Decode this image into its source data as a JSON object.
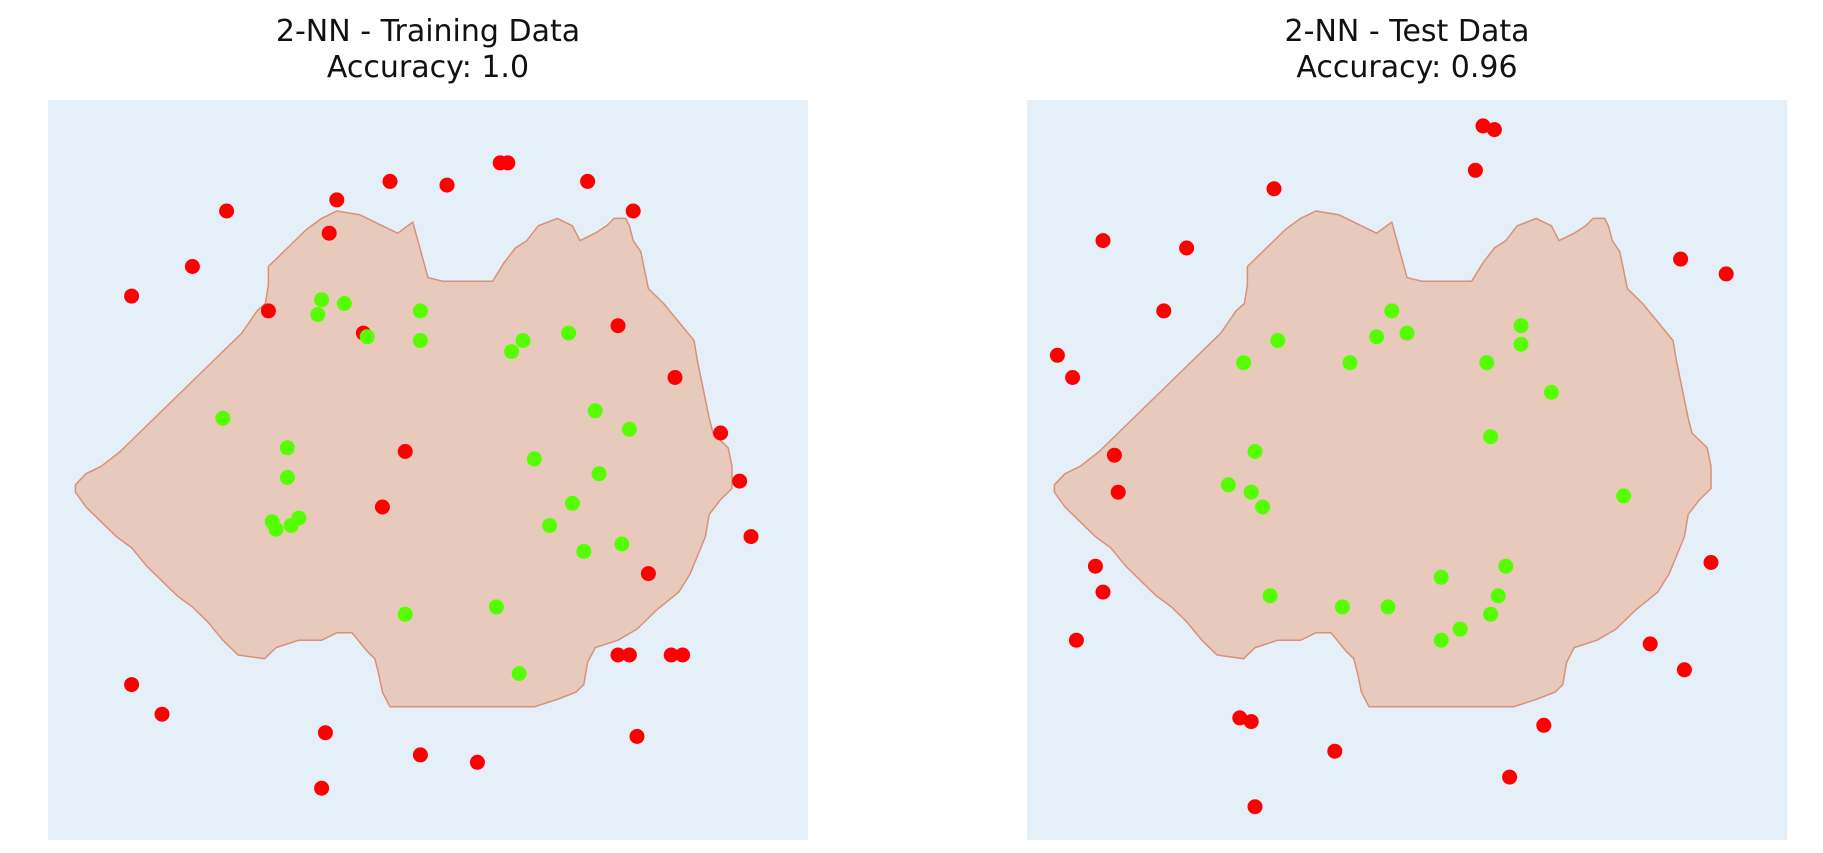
{
  "chart_data": [
    {
      "type": "scatter",
      "title": "2-NN - Training Data",
      "subtitle": "Accuracy: 1.0",
      "xlabel": "",
      "ylabel": "",
      "xlim": [
        0,
        100
      ],
      "ylim": [
        0,
        100
      ],
      "axes_visible": false,
      "grid": false,
      "colors": {
        "background": "#e4eff7",
        "region": "#e8cabd",
        "region_edge": "#d99078",
        "class_in": "#55ff00",
        "class_out": "#ff0000"
      },
      "region_boundary": [
        [
          3.6,
          48
        ],
        [
          5.0,
          49.5
        ],
        [
          7.0,
          50.5
        ],
        [
          9.5,
          52.5
        ],
        [
          12.0,
          55.0
        ],
        [
          15.0,
          58.0
        ],
        [
          18.0,
          61.0
        ],
        [
          21.0,
          64.0
        ],
        [
          24.0,
          67.0
        ],
        [
          25.5,
          68.5
        ],
        [
          26.5,
          70.0
        ],
        [
          27.5,
          71.5
        ],
        [
          28.6,
          72.5
        ],
        [
          29.0,
          75.0
        ],
        [
          29.0,
          77.5
        ],
        [
          31.5,
          80.0
        ],
        [
          34.0,
          82.5
        ],
        [
          36.0,
          84.0
        ],
        [
          38.0,
          85.0
        ],
        [
          41.0,
          84.5
        ],
        [
          44.0,
          83.0
        ],
        [
          46.0,
          82.0
        ],
        [
          48.0,
          83.5
        ],
        [
          50.0,
          76.0
        ],
        [
          52.0,
          75.5
        ],
        [
          56.0,
          75.5
        ],
        [
          58.5,
          75.5
        ],
        [
          60.0,
          78.0
        ],
        [
          61.5,
          80.0
        ],
        [
          63.0,
          81.0
        ],
        [
          64.5,
          83.0
        ],
        [
          67.0,
          84.0
        ],
        [
          69.0,
          83.0
        ],
        [
          70.0,
          81.0
        ],
        [
          72.0,
          82.0
        ],
        [
          73.5,
          83.0
        ],
        [
          74.5,
          84.0
        ],
        [
          76.0,
          84.0
        ],
        [
          76.5,
          83.0
        ],
        [
          77.0,
          81.0
        ],
        [
          78.0,
          79.5
        ],
        [
          78.5,
          77.0
        ],
        [
          79.0,
          74.5
        ],
        [
          81.0,
          72.5
        ],
        [
          83.0,
          70.0
        ],
        [
          85.0,
          67.5
        ],
        [
          85.5,
          64.5
        ],
        [
          86.0,
          62.0
        ],
        [
          86.5,
          59.5
        ],
        [
          87.0,
          57.0
        ],
        [
          87.5,
          55.0
        ],
        [
          89.5,
          53.0
        ],
        [
          90.0,
          50.5
        ],
        [
          90.0,
          47.5
        ],
        [
          88.5,
          46.0
        ],
        [
          87.0,
          44.0
        ],
        [
          86.5,
          41.0
        ],
        [
          85.5,
          38.5
        ],
        [
          84.5,
          36.0
        ],
        [
          83.0,
          33.5
        ],
        [
          80.0,
          31.0
        ],
        [
          77.5,
          28.5
        ],
        [
          75.0,
          27.0
        ],
        [
          72.0,
          26.0
        ],
        [
          71.0,
          24.0
        ],
        [
          70.5,
          21.0
        ],
        [
          69.5,
          20.0
        ],
        [
          67.0,
          19.0
        ],
        [
          64.0,
          18.0
        ],
        [
          58.0,
          18.0
        ],
        [
          50.0,
          18.0
        ],
        [
          45.0,
          18.0
        ],
        [
          44.0,
          20.0
        ],
        [
          43.5,
          22.5
        ],
        [
          43.0,
          24.5
        ],
        [
          42.0,
          25.5
        ],
        [
          40.0,
          28.0
        ],
        [
          38.0,
          28.0
        ],
        [
          36.0,
          27.0
        ],
        [
          33.0,
          27.0
        ],
        [
          30.0,
          26.0
        ],
        [
          28.5,
          24.5
        ],
        [
          25.0,
          25.0
        ],
        [
          23.0,
          27.0
        ],
        [
          21.0,
          29.5
        ],
        [
          19.0,
          31.5
        ],
        [
          17.0,
          33.0
        ],
        [
          15.0,
          35.0
        ],
        [
          13.0,
          37.0
        ],
        [
          11.0,
          39.5
        ],
        [
          9.0,
          41.0
        ],
        [
          7.0,
          43.0
        ],
        [
          5.0,
          45.0
        ],
        [
          3.6,
          47.0
        ]
      ],
      "series": [
        {
          "x": [
            23.5,
            38.0,
            45.0,
            37.0,
            29.0,
            41.5,
            11.0,
            19.0,
            59.5,
            60.5,
            44.0,
            47.0,
            71.0,
            52.5,
            77.0,
            75.0,
            82.5,
            88.5,
            91.0,
            92.5,
            79.0,
            83.5,
            75.0,
            76.5,
            82.0,
            11.0,
            15.0,
            36.5,
            36.0,
            49.0,
            56.5,
            77.5
          ],
          "y": [
            85.0,
            86.5,
            89.0,
            82.0,
            71.5,
            68.5,
            73.5,
            77.5,
            91.5,
            91.5,
            45.0,
            52.5,
            89.0,
            88.5,
            85.0,
            69.5,
            62.5,
            55.0,
            48.5,
            41.0,
            36.0,
            25.0,
            25.0,
            25.0,
            25.0,
            21.0,
            17.0,
            14.5,
            7.0,
            11.5,
            10.5,
            14.0
          ]
        },
        {
          "x": [
            42.0,
            39.0,
            36.0,
            49.0,
            35.5,
            49.0,
            61.0,
            62.5,
            68.5,
            23.0,
            31.5,
            31.5,
            29.5,
            32.0,
            33.0,
            30.0,
            64.0,
            72.0,
            76.5,
            72.5,
            69.0,
            66.0,
            75.5,
            70.5,
            59.0,
            47.0,
            62.0
          ],
          "y": [
            68.0,
            72.5,
            73.0,
            71.5,
            71.0,
            67.5,
            66.0,
            67.5,
            68.5,
            57.0,
            53.0,
            49.0,
            43.0,
            42.5,
            43.5,
            42.0,
            51.5,
            58.0,
            55.5,
            49.5,
            45.5,
            42.5,
            40.0,
            39.0,
            31.5,
            30.5,
            22.5
          ]
        }
      ]
    },
    {
      "type": "scatter",
      "title": "2-NN - Test Data",
      "subtitle": "Accuracy: 0.96",
      "xlabel": "",
      "ylabel": "",
      "xlim": [
        0,
        100
      ],
      "ylim": [
        0,
        100
      ],
      "axes_visible": false,
      "grid": false,
      "colors": {
        "background": "#e4eff7",
        "region": "#e8cabd",
        "region_edge": "#d99078",
        "class_in": "#55ff00",
        "class_out": "#ff0000"
      },
      "region_boundary": [
        [
          3.6,
          48
        ],
        [
          5.0,
          49.5
        ],
        [
          7.0,
          50.5
        ],
        [
          9.5,
          52.5
        ],
        [
          12.0,
          55.0
        ],
        [
          15.0,
          58.0
        ],
        [
          18.0,
          61.0
        ],
        [
          21.0,
          64.0
        ],
        [
          24.0,
          67.0
        ],
        [
          25.5,
          68.5
        ],
        [
          26.5,
          70.0
        ],
        [
          27.5,
          71.5
        ],
        [
          28.6,
          72.5
        ],
        [
          29.0,
          75.0
        ],
        [
          29.0,
          77.5
        ],
        [
          31.5,
          80.0
        ],
        [
          34.0,
          82.5
        ],
        [
          36.0,
          84.0
        ],
        [
          38.0,
          85.0
        ],
        [
          41.0,
          84.5
        ],
        [
          44.0,
          83.0
        ],
        [
          46.0,
          82.0
        ],
        [
          48.0,
          83.5
        ],
        [
          50.0,
          76.0
        ],
        [
          52.0,
          75.5
        ],
        [
          56.0,
          75.5
        ],
        [
          58.5,
          75.5
        ],
        [
          60.0,
          78.0
        ],
        [
          61.5,
          80.0
        ],
        [
          63.0,
          81.0
        ],
        [
          64.5,
          83.0
        ],
        [
          67.0,
          84.0
        ],
        [
          69.0,
          83.0
        ],
        [
          70.0,
          81.0
        ],
        [
          72.0,
          82.0
        ],
        [
          73.5,
          83.0
        ],
        [
          74.5,
          84.0
        ],
        [
          76.0,
          84.0
        ],
        [
          76.5,
          83.0
        ],
        [
          77.0,
          81.0
        ],
        [
          78.0,
          79.5
        ],
        [
          78.5,
          77.0
        ],
        [
          79.0,
          74.5
        ],
        [
          81.0,
          72.5
        ],
        [
          83.0,
          70.0
        ],
        [
          85.0,
          67.5
        ],
        [
          85.5,
          64.5
        ],
        [
          86.0,
          62.0
        ],
        [
          86.5,
          59.5
        ],
        [
          87.0,
          57.0
        ],
        [
          87.5,
          55.0
        ],
        [
          89.5,
          53.0
        ],
        [
          90.0,
          50.5
        ],
        [
          90.0,
          47.5
        ],
        [
          88.5,
          46.0
        ],
        [
          87.0,
          44.0
        ],
        [
          86.5,
          41.0
        ],
        [
          85.5,
          38.5
        ],
        [
          84.5,
          36.0
        ],
        [
          83.0,
          33.5
        ],
        [
          80.0,
          31.0
        ],
        [
          77.5,
          28.5
        ],
        [
          75.0,
          27.0
        ],
        [
          72.0,
          26.0
        ],
        [
          71.0,
          24.0
        ],
        [
          70.5,
          21.0
        ],
        [
          69.5,
          20.0
        ],
        [
          67.0,
          19.0
        ],
        [
          64.0,
          18.0
        ],
        [
          58.0,
          18.0
        ],
        [
          50.0,
          18.0
        ],
        [
          45.0,
          18.0
        ],
        [
          44.0,
          20.0
        ],
        [
          43.5,
          22.5
        ],
        [
          43.0,
          24.5
        ],
        [
          42.0,
          25.5
        ],
        [
          40.0,
          28.0
        ],
        [
          38.0,
          28.0
        ],
        [
          36.0,
          27.0
        ],
        [
          33.0,
          27.0
        ],
        [
          30.0,
          26.0
        ],
        [
          28.5,
          24.5
        ],
        [
          25.0,
          25.0
        ],
        [
          23.0,
          27.0
        ],
        [
          21.0,
          29.5
        ],
        [
          19.0,
          31.5
        ],
        [
          17.0,
          33.0
        ],
        [
          15.0,
          35.0
        ],
        [
          13.0,
          37.0
        ],
        [
          11.0,
          39.5
        ],
        [
          9.0,
          41.0
        ],
        [
          7.0,
          43.0
        ],
        [
          5.0,
          45.0
        ],
        [
          3.6,
          47.0
        ]
      ],
      "series": [
        {
          "x": [
            60.0,
            61.5,
            59.0,
            32.5,
            10.0,
            21.0,
            18.0,
            4.0,
            6.0,
            11.5,
            12.0,
            9.0,
            10.0,
            6.5,
            86.0,
            92.0,
            90.0,
            82.0,
            86.5,
            28.0,
            29.5,
            40.5,
            68.0,
            63.5,
            30.0
          ],
          "y": [
            96.5,
            96.0,
            90.5,
            88.0,
            81.0,
            80.0,
            71.5,
            65.5,
            62.5,
            52.0,
            47.0,
            37.0,
            33.5,
            27.0,
            78.5,
            76.5,
            37.5,
            26.5,
            23.0,
            16.5,
            16.0,
            12.0,
            15.5,
            8.5,
            4.5
          ]
        },
        {
          "x": [
            48.0,
            50.0,
            46.0,
            33.0,
            28.5,
            42.5,
            60.5,
            65.0,
            65.0,
            69.0,
            61.0,
            30.0,
            26.5,
            29.5,
            31.0,
            78.5,
            32.0,
            41.5,
            47.5,
            54.5,
            63.0,
            62.0,
            61.0,
            57.0,
            54.5
          ],
          "y": [
            71.5,
            68.5,
            68.0,
            67.5,
            64.5,
            64.5,
            64.5,
            69.5,
            67.0,
            60.5,
            54.5,
            52.5,
            48.0,
            47.0,
            45.0,
            46.5,
            33.0,
            31.5,
            31.5,
            35.5,
            37.0,
            33.0,
            30.5,
            28.5,
            27.0
          ]
        }
      ]
    }
  ]
}
